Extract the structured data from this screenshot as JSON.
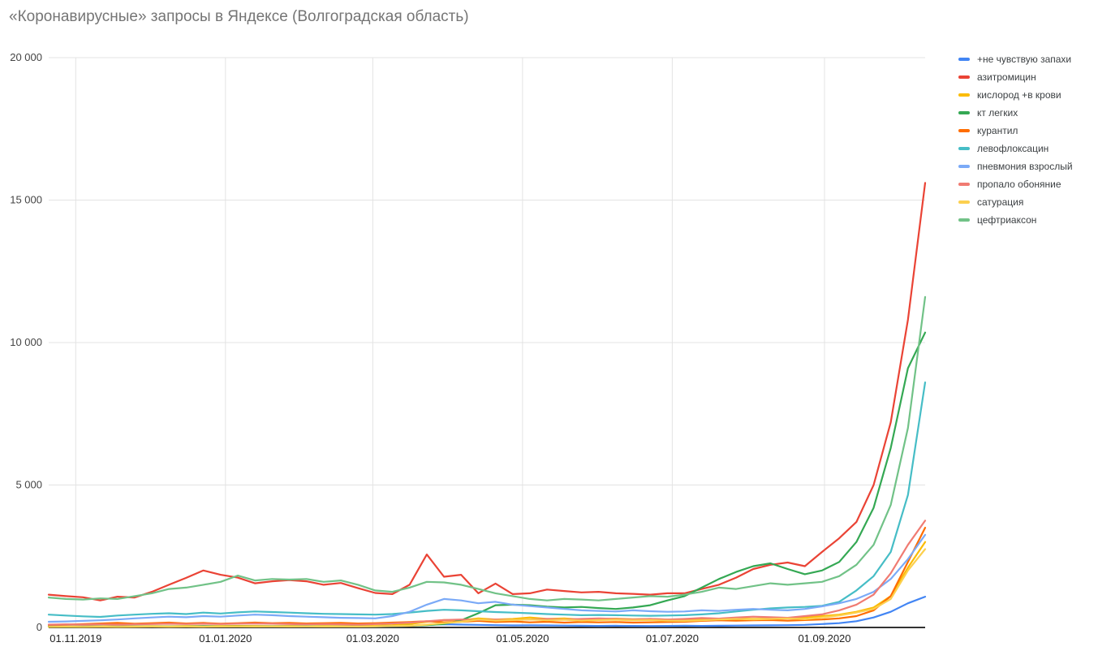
{
  "title": "«Коронавирусные» запросы в Яндексе (Волгоградская область)",
  "chart_data": {
    "type": "line",
    "title": "«Коронавирусные» запросы в Яндексе (Волгоградская область)",
    "xlabel": "",
    "ylabel": "",
    "ylim": [
      0,
      20000
    ],
    "grid": true,
    "legend_position": "right",
    "x": [
      "21.10.2019",
      "28.10.2019",
      "04.11.2019",
      "11.11.2019",
      "18.11.2019",
      "25.11.2019",
      "02.12.2019",
      "09.12.2019",
      "16.12.2019",
      "23.12.2019",
      "30.12.2019",
      "06.01.2020",
      "13.01.2020",
      "20.01.2020",
      "27.01.2020",
      "03.02.2020",
      "10.02.2020",
      "17.02.2020",
      "24.02.2020",
      "02.03.2020",
      "09.03.2020",
      "16.03.2020",
      "23.03.2020",
      "30.03.2020",
      "06.04.2020",
      "13.04.2020",
      "20.04.2020",
      "27.04.2020",
      "04.05.2020",
      "11.05.2020",
      "18.05.2020",
      "25.05.2020",
      "01.06.2020",
      "08.06.2020",
      "15.06.2020",
      "22.06.2020",
      "29.06.2020",
      "06.07.2020",
      "13.07.2020",
      "20.07.2020",
      "27.07.2020",
      "03.08.2020",
      "10.08.2020",
      "17.08.2020",
      "24.08.2020",
      "31.08.2020",
      "07.09.2020",
      "14.09.2020",
      "21.09.2020",
      "28.09.2020",
      "05.10.2020",
      "12.10.2020"
    ],
    "yticks": [
      {
        "value": 0,
        "label": "0"
      },
      {
        "value": 5000,
        "label": "5 000"
      },
      {
        "value": 10000,
        "label": "10 000"
      },
      {
        "value": 15000,
        "label": "15 000"
      },
      {
        "value": 20000,
        "label": "20 000"
      }
    ],
    "xticks": [
      {
        "label": "01.11.2019",
        "index": 1.571
      },
      {
        "label": "01.01.2020",
        "index": 10.286
      },
      {
        "label": "01.03.2020",
        "index": 18.857
      },
      {
        "label": "01.05.2020",
        "index": 27.571
      },
      {
        "label": "01.07.2020",
        "index": 36.286
      },
      {
        "label": "01.09.2020",
        "index": 45.143
      }
    ],
    "series": [
      {
        "name": "+не чувствую запахи",
        "color": "#4285F4",
        "values": [
          40,
          35,
          30,
          35,
          30,
          35,
          40,
          35,
          40,
          45,
          40,
          50,
          45,
          40,
          45,
          40,
          35,
          40,
          35,
          40,
          45,
          60,
          90,
          110,
          100,
          90,
          80,
          70,
          75,
          70,
          65,
          60,
          55,
          60,
          55,
          50,
          55,
          60,
          55,
          60,
          65,
          70,
          75,
          80,
          90,
          120,
          150,
          220,
          350,
          550,
          850,
          1080
        ]
      },
      {
        "name": "азитромицин",
        "color": "#EA4335",
        "values": [
          1150,
          1100,
          1060,
          950,
          1080,
          1050,
          1250,
          1500,
          1740,
          2000,
          1850,
          1750,
          1550,
          1620,
          1660,
          1620,
          1500,
          1560,
          1380,
          1210,
          1170,
          1500,
          2560,
          1780,
          1850,
          1200,
          1540,
          1170,
          1200,
          1330,
          1280,
          1230,
          1250,
          1200,
          1180,
          1150,
          1200,
          1200,
          1350,
          1500,
          1750,
          2050,
          2200,
          2280,
          2150,
          2650,
          3130,
          3700,
          5000,
          7200,
          10800,
          15600
        ]
      },
      {
        "name": "кислород +в крови",
        "color": "#FBBC04",
        "values": [
          30,
          35,
          30,
          40,
          35,
          40,
          45,
          40,
          50,
          45,
          50,
          55,
          50,
          45,
          50,
          45,
          50,
          45,
          50,
          60,
          80,
          120,
          200,
          260,
          250,
          320,
          280,
          300,
          350,
          300,
          320,
          280,
          300,
          310,
          290,
          300,
          280,
          260,
          280,
          300,
          320,
          300,
          310,
          330,
          350,
          400,
          450,
          550,
          700,
          1100,
          2100,
          3000
        ]
      },
      {
        "name": "кт легких",
        "color": "#34A853",
        "values": [
          25,
          20,
          25,
          30,
          25,
          30,
          35,
          30,
          35,
          40,
          35,
          40,
          35,
          40,
          35,
          40,
          35,
          30,
          35,
          40,
          50,
          60,
          80,
          120,
          250,
          500,
          780,
          800,
          780,
          730,
          700,
          720,
          680,
          650,
          700,
          780,
          950,
          1100,
          1400,
          1700,
          1950,
          2150,
          2250,
          2050,
          1870,
          2000,
          2300,
          3000,
          4200,
          6300,
          9100,
          10350
        ]
      },
      {
        "name": "курантил",
        "color": "#FF6D00",
        "values": [
          90,
          100,
          120,
          140,
          160,
          130,
          150,
          170,
          140,
          160,
          130,
          150,
          170,
          150,
          160,
          140,
          150,
          160,
          140,
          150,
          170,
          190,
          220,
          180,
          200,
          230,
          190,
          210,
          180,
          200,
          170,
          190,
          180,
          190,
          170,
          180,
          190,
          200,
          230,
          250,
          240,
          250,
          260,
          240,
          260,
          280,
          320,
          400,
          600,
          1100,
          2300,
          3500
        ]
      },
      {
        "name": "левофлоксацин",
        "color": "#46BDC6",
        "values": [
          450,
          420,
          390,
          370,
          420,
          450,
          480,
          500,
          470,
          520,
          490,
          530,
          560,
          540,
          520,
          500,
          480,
          470,
          460,
          450,
          470,
          520,
          580,
          620,
          600,
          570,
          540,
          520,
          500,
          470,
          450,
          430,
          440,
          430,
          420,
          410,
          420,
          430,
          460,
          500,
          560,
          620,
          670,
          700,
          720,
          760,
          900,
          1300,
          1800,
          2650,
          4650,
          8600
        ]
      },
      {
        "name": "пневмония взрослый",
        "color": "#7BAAF7",
        "values": [
          200,
          210,
          230,
          250,
          280,
          320,
          350,
          380,
          360,
          400,
          380,
          420,
          450,
          430,
          400,
          380,
          360,
          340,
          330,
          320,
          400,
          550,
          800,
          1000,
          950,
          850,
          900,
          800,
          750,
          700,
          650,
          600,
          580,
          560,
          600,
          570,
          550,
          560,
          600,
          580,
          620,
          650,
          620,
          600,
          650,
          740,
          850,
          1000,
          1250,
          1700,
          2400,
          3250
        ]
      },
      {
        "name": "пропало обоняние",
        "color": "#F07B72",
        "values": [
          100,
          110,
          100,
          110,
          100,
          110,
          120,
          130,
          120,
          130,
          120,
          130,
          140,
          130,
          120,
          110,
          120,
          110,
          100,
          120,
          140,
          170,
          220,
          260,
          280,
          260,
          280,
          260,
          280,
          300,
          280,
          300,
          320,
          300,
          280,
          300,
          280,
          300,
          330,
          310,
          350,
          380,
          360,
          340,
          400,
          460,
          600,
          800,
          1150,
          1900,
          2900,
          3750
        ]
      },
      {
        "name": "сатурация",
        "color": "#FCD04F",
        "values": [
          20,
          25,
          20,
          25,
          20,
          25,
          30,
          25,
          30,
          25,
          30,
          35,
          30,
          35,
          30,
          35,
          30,
          35,
          30,
          40,
          50,
          60,
          100,
          150,
          200,
          280,
          240,
          260,
          280,
          250,
          270,
          240,
          260,
          270,
          250,
          260,
          240,
          230,
          250,
          280,
          300,
          280,
          300,
          320,
          290,
          350,
          420,
          520,
          650,
          1000,
          2000,
          2750
        ]
      },
      {
        "name": "цефтриаксон",
        "color": "#71C287",
        "values": [
          1050,
          1000,
          980,
          1020,
          1000,
          1100,
          1200,
          1350,
          1400,
          1500,
          1600,
          1820,
          1650,
          1700,
          1680,
          1700,
          1600,
          1650,
          1500,
          1300,
          1250,
          1400,
          1600,
          1580,
          1500,
          1350,
          1200,
          1100,
          1000,
          950,
          1000,
          980,
          950,
          1000,
          1050,
          1100,
          1080,
          1150,
          1250,
          1400,
          1350,
          1450,
          1550,
          1500,
          1550,
          1600,
          1800,
          2200,
          2900,
          4300,
          7000,
          11600
        ]
      }
    ],
    "colors": {
      "grid": "#e3e3e3",
      "axis_baseline": "#333333",
      "title_text": "#757575",
      "tick_text": "#444444",
      "legend_text": "#3c4043"
    }
  }
}
